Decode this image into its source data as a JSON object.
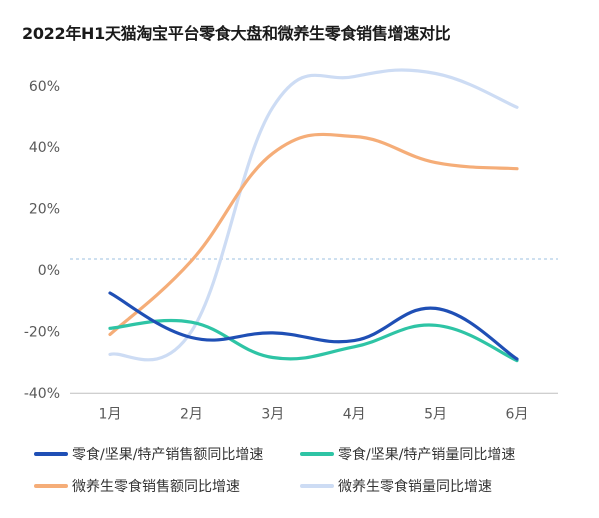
{
  "chart_data": {
    "type": "line",
    "title": "2022年H1天猫淘宝平台零食大盘和微养生零食销售增速对比",
    "categories": [
      "1月",
      "2月",
      "3月",
      "4月",
      "5月",
      "6月"
    ],
    "y_ticks": [
      "60%",
      "40%",
      "20%",
      "0%",
      "-20%",
      "-40%"
    ],
    "ylim": [
      -40,
      65
    ],
    "unit": "%",
    "grid": false,
    "legend_position": "bottom",
    "series": [
      {
        "name": "零食/坚果/特产销售额同比增速",
        "color": "#1f4fb5",
        "values": [
          -7.5,
          -22,
          -20.5,
          -23,
          -12.5,
          -29
        ]
      },
      {
        "name": "零食/坚果/特产销量同比增速",
        "color": "#2ec4a5",
        "values": [
          -19,
          -17,
          -28.5,
          -25,
          -18,
          -29.5
        ]
      },
      {
        "name": "微养生零食销售额同比增速",
        "color": "#f5ad78",
        "values": [
          -21,
          3,
          38,
          43.5,
          35,
          33
        ]
      },
      {
        "name": "微养生零食销量同比增速",
        "color": "#cddcf4",
        "values": [
          -27.5,
          -20,
          53,
          63,
          64,
          53
        ]
      }
    ]
  }
}
